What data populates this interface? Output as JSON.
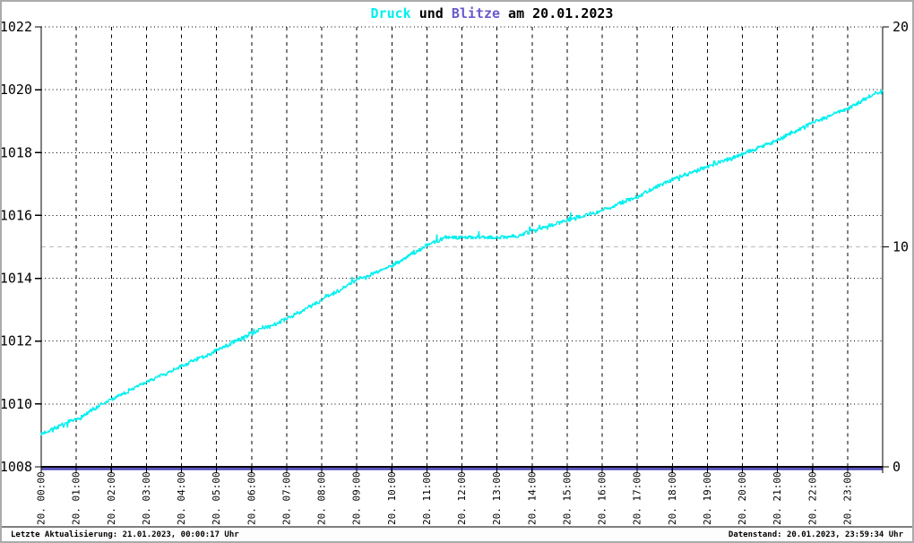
{
  "window": {
    "background": "#ffffff",
    "border_color": "#ababab"
  },
  "header": {
    "title_full": "Druck und Blitze am 20.01.2023",
    "title_parts": [
      {
        "text": "Druck",
        "color": "#00EFEF"
      },
      {
        "text": " und ",
        "color": "#000000"
      },
      {
        "text": "Blitze",
        "color": "#6A5ACD"
      },
      {
        "text": " am 20.01.2023",
        "color": "#000000"
      }
    ]
  },
  "statusbar": {
    "left": "Letzte Aktualisierung: 21.01.2023, 00:00:17 Uhr",
    "right": "Datenstand: 20.01.2023, 23:59:34 Uhr"
  },
  "chart_data": {
    "type": "line",
    "title": "Druck und Blitze am 20.01.2023",
    "x_axis": {
      "label": "",
      "hours": [
        0,
        1,
        2,
        3,
        4,
        5,
        6,
        7,
        8,
        9,
        10,
        11,
        12,
        13,
        14,
        15,
        16,
        17,
        18,
        19,
        20,
        21,
        22,
        23
      ],
      "tick_labels": [
        "20. 00:00",
        "20. 01:00",
        "20. 02:00",
        "20. 03:00",
        "20. 04:00",
        "20. 05:00",
        "20. 06:00",
        "20. 07:00",
        "20. 08:00",
        "20. 09:00",
        "20. 10:00",
        "20. 11:00",
        "20. 12:00",
        "20. 13:00",
        "20. 14:00",
        "20. 15:00",
        "20. 16:00",
        "20. 17:00",
        "20. 18:00",
        "20. 19:00",
        "20. 20:00",
        "20. 21:00",
        "20. 22:00",
        "20. 23:00"
      ]
    },
    "left_axis": {
      "series": "Druck",
      "min": 1008,
      "max": 1022,
      "tick_step": 2,
      "ticks": [
        1008,
        1010,
        1012,
        1014,
        1016,
        1018,
        1020,
        1022
      ]
    },
    "right_axis": {
      "series": "Blitze",
      "min": 0,
      "max": 20,
      "ticks": [
        0,
        10,
        20
      ]
    },
    "grid": {
      "horizontal_style": "black dotted at every 2 hPa",
      "vertical_style": "black dashed at every hour",
      "right_axis_mid_line_color": "#bcbcbc",
      "line_color": "#000000"
    },
    "legend_position": "none (series named by colored title words)",
    "series": [
      {
        "name": "Druck",
        "axis": "left",
        "color": "#00EFEF",
        "points": [
          [
            0,
            1009.05
          ],
          [
            1,
            1009.5
          ],
          [
            2,
            1010.15
          ],
          [
            3,
            1010.7
          ],
          [
            4,
            1011.2
          ],
          [
            5,
            1011.7
          ],
          [
            6,
            1012.25
          ],
          [
            7,
            1012.7
          ],
          [
            8,
            1013.3
          ],
          [
            9,
            1013.95
          ],
          [
            10,
            1014.4
          ],
          [
            11,
            1015.05
          ],
          [
            11.5,
            1015.3
          ],
          [
            12,
            1015.3
          ],
          [
            13,
            1015.3
          ],
          [
            13.6,
            1015.35
          ],
          [
            14,
            1015.5
          ],
          [
            15,
            1015.85
          ],
          [
            16,
            1016.15
          ],
          [
            17,
            1016.6
          ],
          [
            18,
            1017.15
          ],
          [
            19,
            1017.55
          ],
          [
            20,
            1017.95
          ],
          [
            21,
            1018.4
          ],
          [
            22,
            1018.95
          ],
          [
            23,
            1019.4
          ],
          [
            24,
            1020.0
          ]
        ]
      },
      {
        "name": "Blitze",
        "axis": "right",
        "color": "#3F3AB5",
        "points": [
          [
            0,
            0
          ],
          [
            24,
            0
          ]
        ]
      }
    ]
  }
}
